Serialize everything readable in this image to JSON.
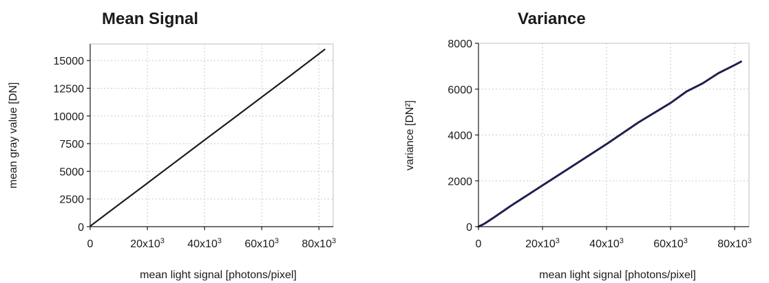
{
  "chart_data": [
    {
      "type": "line",
      "title": "Mean Signal",
      "xlabel": "mean light signal [photons/pixel]",
      "ylabel": "mean gray value [DN]",
      "xlim": [
        0,
        85000
      ],
      "ylim": [
        0,
        16500
      ],
      "xticks": [
        0,
        20000,
        40000,
        60000,
        80000
      ],
      "xtick_labels": [
        {
          "base": "0",
          "exp": ""
        },
        {
          "base": "20x10",
          "exp": "3"
        },
        {
          "base": "40x10",
          "exp": "3"
        },
        {
          "base": "60x10",
          "exp": "3"
        },
        {
          "base": "80x10",
          "exp": "3"
        }
      ],
      "yticks": [
        0,
        2500,
        5000,
        7500,
        10000,
        12500,
        15000
      ],
      "ytick_labels": [
        "0",
        "2500",
        "5000",
        "7500",
        "10000",
        "12500",
        "15000"
      ],
      "grid": true,
      "series": [
        {
          "color": "#1a1a1a",
          "x": [
            0,
            10000,
            20000,
            30000,
            40000,
            50000,
            60000,
            70000,
            82000
          ],
          "y": [
            50,
            1990,
            3930,
            5880,
            7820,
            9760,
            11700,
            13640,
            16000
          ]
        }
      ]
    },
    {
      "type": "line",
      "title": "Variance",
      "xlabel": "mean light signal [photons/pixel]",
      "ylabel": "variance [DN²]",
      "xlim": [
        0,
        84500
      ],
      "ylim": [
        0,
        8000
      ],
      "xticks": [
        0,
        20000,
        40000,
        60000,
        80000
      ],
      "xtick_labels": [
        {
          "base": "0",
          "exp": ""
        },
        {
          "base": "20x10",
          "exp": "3"
        },
        {
          "base": "40x10",
          "exp": "3"
        },
        {
          "base": "60x10",
          "exp": "3"
        },
        {
          "base": "80x10",
          "exp": "3"
        }
      ],
      "yticks": [
        0,
        2000,
        4000,
        6000,
        8000
      ],
      "ytick_labels": [
        "0",
        "2000",
        "4000",
        "6000",
        "8000"
      ],
      "grid": true,
      "series": [
        {
          "color": "#1f1f4f",
          "x": [
            0,
            2000,
            5000,
            10000,
            20000,
            30000,
            40000,
            50000,
            60000,
            65000,
            70000,
            75000,
            80000,
            82000
          ],
          "y": [
            0,
            140,
            420,
            900,
            1800,
            2700,
            3600,
            4550,
            5400,
            5900,
            6250,
            6700,
            7050,
            7200
          ]
        }
      ]
    }
  ]
}
